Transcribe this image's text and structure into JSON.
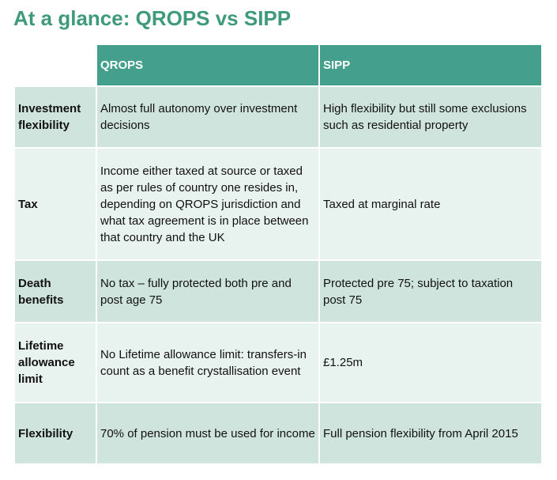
{
  "title": "At a glance: QROPS vs SIPP",
  "table": {
    "headers": [
      "",
      "QROPS",
      "SIPP"
    ],
    "rows": [
      {
        "label": "Investment flexibility",
        "qrops": "Almost full autonomy over investment decisions",
        "sipp": "High flexibility but still some exclusions such as residential property"
      },
      {
        "label": "Tax",
        "qrops": "Income either taxed at source or taxed as per rules of country one resides in, depending on QROPS jurisdiction and what tax agreement is in place between that country and the UK",
        "sipp": "Taxed at marginal rate"
      },
      {
        "label": "Death benefits",
        "qrops": "No tax – fully protected both pre and post age 75",
        "sipp": "Protected pre 75; subject to taxation post 75"
      },
      {
        "label": "Lifetime allowance limit",
        "qrops": "No Lifetime allowance limit: transfers-in count as a benefit crystallisation event",
        "sipp": "£1.25m"
      },
      {
        "label": "Flexibility",
        "qrops": "70% of pension must be used for income",
        "sipp": "Full pension flexibility from April 2015"
      }
    ]
  },
  "colors": {
    "title": "#3f9a7c",
    "header_bg": "#44a08c",
    "row_dark": "#cfe4dc",
    "row_light": "#e8f2ee"
  }
}
